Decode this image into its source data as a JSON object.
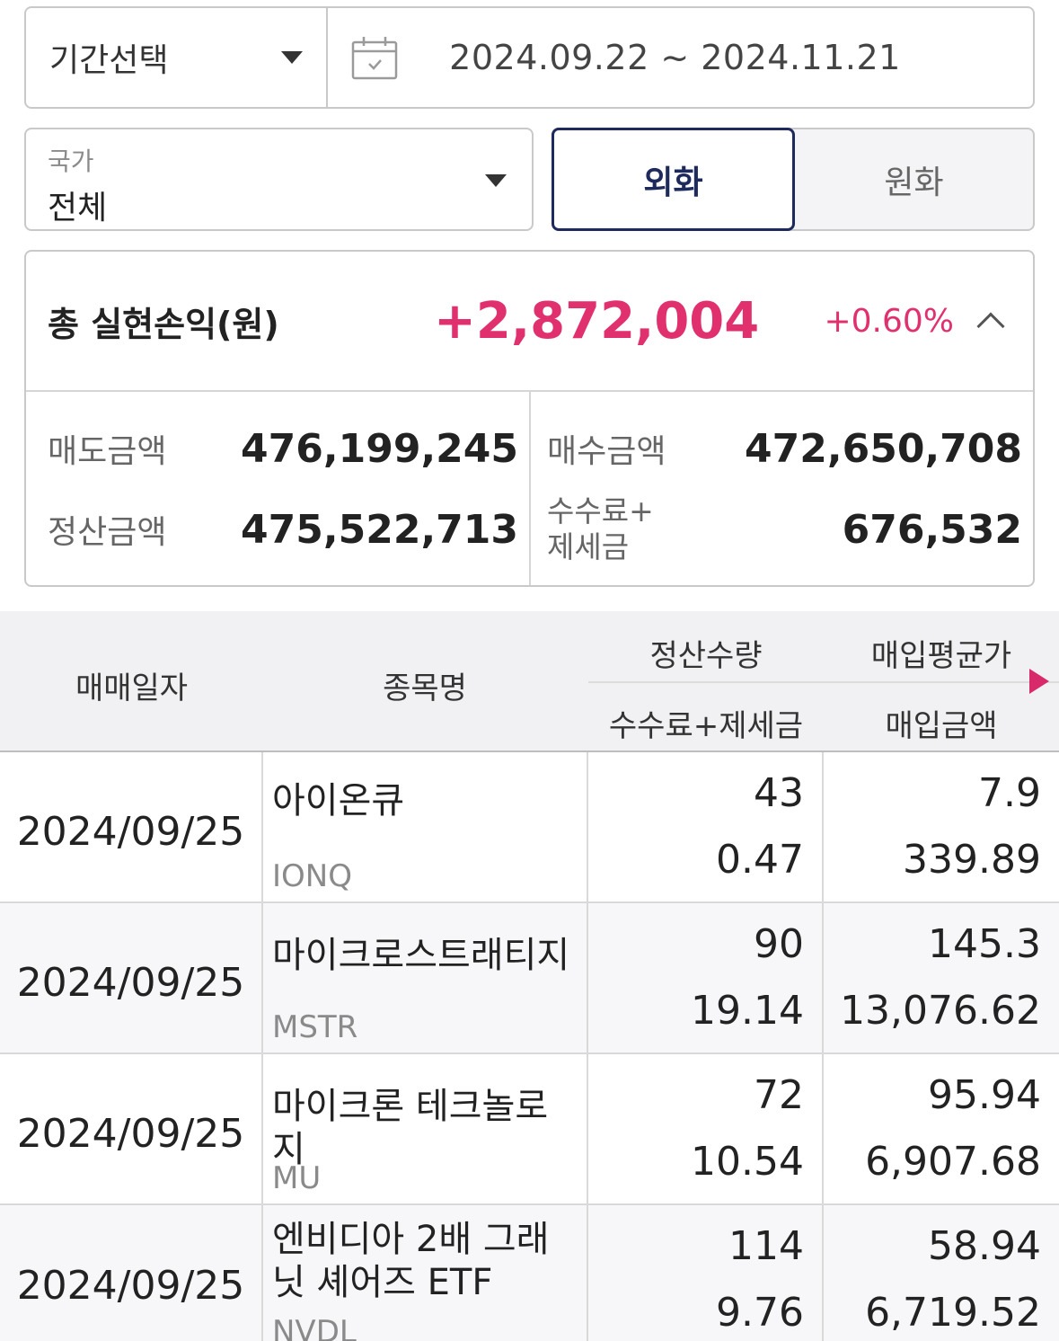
{
  "period": {
    "select_label": "기간선택",
    "date_range": "2024.09.22 ~ 2024.11.21"
  },
  "country": {
    "caption": "국가",
    "value": "전체"
  },
  "currency": {
    "foreign": "외화",
    "won": "원화",
    "selected": "외화"
  },
  "summary": {
    "title": "총 실현손익(원)",
    "value": "+2,872,004",
    "rate": "+0.60%",
    "sell_label": "매도금액",
    "sell_value": "476,199,245",
    "buy_label": "매수금액",
    "buy_value": "472,650,708",
    "settle_label": "정산금액",
    "settle_value": "475,522,713",
    "fee_label_1": "수수료+",
    "fee_label_2": "제세금",
    "fee_value": "676,532"
  },
  "table": {
    "headers": {
      "date": "매매일자",
      "name": "종목명",
      "qty": "정산수량",
      "avg": "매입평균가",
      "fee": "수수료+제세금",
      "amount": "매입금액"
    },
    "rows": [
      {
        "date": "2024/09/25",
        "name": "아이온큐",
        "ticker": "IONQ",
        "qty": "43",
        "avg": "7.9",
        "fee": "0.47",
        "amount": "339.89"
      },
      {
        "date": "2024/09/25",
        "name": "마이크로스트래티지",
        "ticker": "MSTR",
        "qty": "90",
        "avg": "145.3",
        "fee": "19.14",
        "amount": "13,076.62"
      },
      {
        "date": "2024/09/25",
        "name": "마이크론 테크놀로지",
        "ticker": "MU",
        "qty": "72",
        "avg": "95.94",
        "fee": "10.54",
        "amount": "6,907.68"
      },
      {
        "date": "2024/09/25",
        "name": "엔비디아 2배 그래닛 셰어즈 ETF",
        "ticker": "NVDL",
        "qty": "114",
        "avg": "58.94",
        "fee": "9.76",
        "amount": "6,719.52"
      }
    ]
  },
  "colors": {
    "accent_pink": "#e0306e",
    "navy": "#1f2a5c"
  },
  "icons": {
    "period_caret": "caret-down-icon",
    "calendar": "calendar-icon",
    "country_caret": "caret-down-icon",
    "collapse": "chevron-up-icon",
    "more_columns": "triangle-right-icon"
  }
}
